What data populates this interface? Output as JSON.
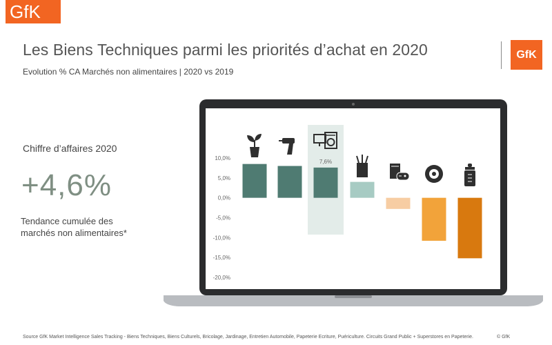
{
  "header": {
    "logo_text": "GfK",
    "title": "Les Biens Techniques parmi les priorités d’achat en 2020",
    "subtitle": "Evolution % CA Marchés non alimentaires | 2020 vs 2019",
    "brand_color": "#f26522"
  },
  "kpi": {
    "label": "Chiffre d’affaires 2020",
    "value": "+4,6%",
    "desc_line1": "Tendance cumulée des",
    "desc_line2": "marchés non alimentaires*"
  },
  "chart_data": {
    "type": "bar",
    "categories": [
      "jardinage",
      "bricolage",
      "biens-techniques",
      "papeterie-ecriture",
      "biens-culturels",
      "entretien-automobile",
      "puericulture"
    ],
    "icons": [
      "plant-icon",
      "drill-icon",
      "tech-devices-icon",
      "pencil-cup-icon",
      "book-gamepad-icon",
      "tire-icon",
      "baby-bottle-icon"
    ],
    "values": [
      8.5,
      8.0,
      7.6,
      4.0,
      -2.8,
      -10.8,
      -15.2
    ],
    "colors": [
      "#4f7b72",
      "#4f7b72",
      "#4f7b72",
      "#a7cbc3",
      "#f7cda3",
      "#f2a33a",
      "#d8790f"
    ],
    "highlight_index": 2,
    "highlight_label": "7,6%",
    "ylim": [
      -20,
      10
    ],
    "yticks": [
      10,
      5,
      0,
      -5,
      -10,
      -15,
      -20
    ],
    "ytick_labels": [
      "10,0%",
      "5,0%",
      "0,0%",
      "-5,0%",
      "-10,0%",
      "-15,0%",
      "-20,0%"
    ]
  },
  "footer": {
    "source": "Source GfK Market Intelligence Sales Tracking - Biens Techniques, Biens Culturels, Bricolage, Jardinage, Entretien Automobile, Papeterie Ecriture, Puériculture. Circuits Grand Public + Superstores en Papeterie.",
    "copyright": "© GfK"
  }
}
